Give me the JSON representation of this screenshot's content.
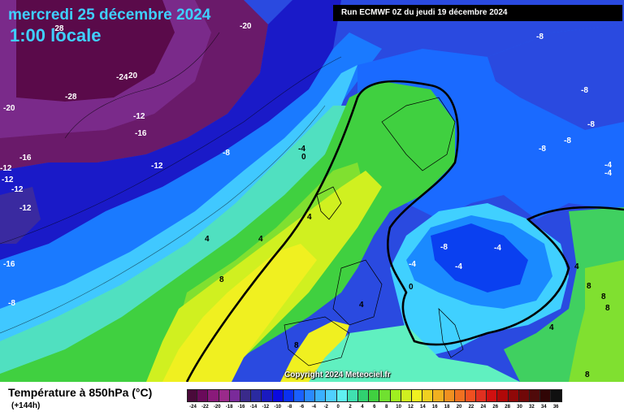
{
  "title": {
    "date": "mercredi 25 décembre 2024",
    "time": "1:00 locale",
    "run": "Run ECMWF 0Z du jeudi 19 décembre 2024"
  },
  "copyright": "Copyright 2024 Meteociel.fr",
  "legend": {
    "title": "Température à 850hPa (°C)",
    "subtitle": "(+144h)",
    "colors": [
      "#4a0a3a",
      "#6a0a5a",
      "#8a1a7a",
      "#9a2a8a",
      "#7a2a9a",
      "#3a2a8a",
      "#2a2aa0",
      "#1a1ac0",
      "#0a0ae0",
      "#0a30f0",
      "#1a60ff",
      "#2a8aff",
      "#3ab0ff",
      "#50d0ff",
      "#60f0f0",
      "#40e0b0",
      "#30d070",
      "#40d040",
      "#70e030",
      "#a0f020",
      "#d0f020",
      "#f0f020",
      "#f0d020",
      "#f0b020",
      "#f09020",
      "#f07020",
      "#f05020",
      "#e03020",
      "#d01010",
      "#b00808",
      "#900808",
      "#700808",
      "#500a0a",
      "#300505",
      "#101010"
    ],
    "labels": [
      "-24",
      "-22",
      "-20",
      "-18",
      "-16",
      "-14",
      "-12",
      "-10",
      "-8",
      "-6",
      "-4",
      "-2",
      "0",
      "2",
      "4",
      "6",
      "8",
      "10",
      "12",
      "14",
      "16",
      "18",
      "20",
      "22",
      "24",
      "26",
      "28",
      "30",
      "32",
      "34",
      "36"
    ]
  },
  "map_labels": {
    "l1": "-28",
    "l2": "-20",
    "l3": "-24",
    "l4": "20",
    "l5": "-28",
    "l6": "-20",
    "l7": "-12",
    "l8": "-16",
    "l9": "-16",
    "l10": "-12",
    "l11": "-12",
    "l12": "-12",
    "l13": "-8",
    "l14": "-12",
    "l15": "-16",
    "l16": "-8",
    "l17": "-4",
    "l18": "0",
    "l19": "4",
    "l20": "4",
    "l21": "4",
    "l22": "8",
    "l23": "8",
    "l24": "-8",
    "l25": "-8",
    "l26": "-8",
    "l27": "-8",
    "l28": "-8",
    "l29": "-4",
    "l30": "-4",
    "l31": "-8",
    "l32": "-4",
    "l33": "-4",
    "l34": "-4",
    "l35": "0",
    "l36": "4",
    "l37": "4",
    "l38": "8",
    "l39": "8",
    "l40": "8",
    "l41": "4",
    "l42": "8",
    "l43": "-8",
    "l44": "4"
  },
  "colors": {
    "run_box_bg": "#000000",
    "title_text": "#3fd0ff",
    "isotherm_zero": "#000000"
  }
}
